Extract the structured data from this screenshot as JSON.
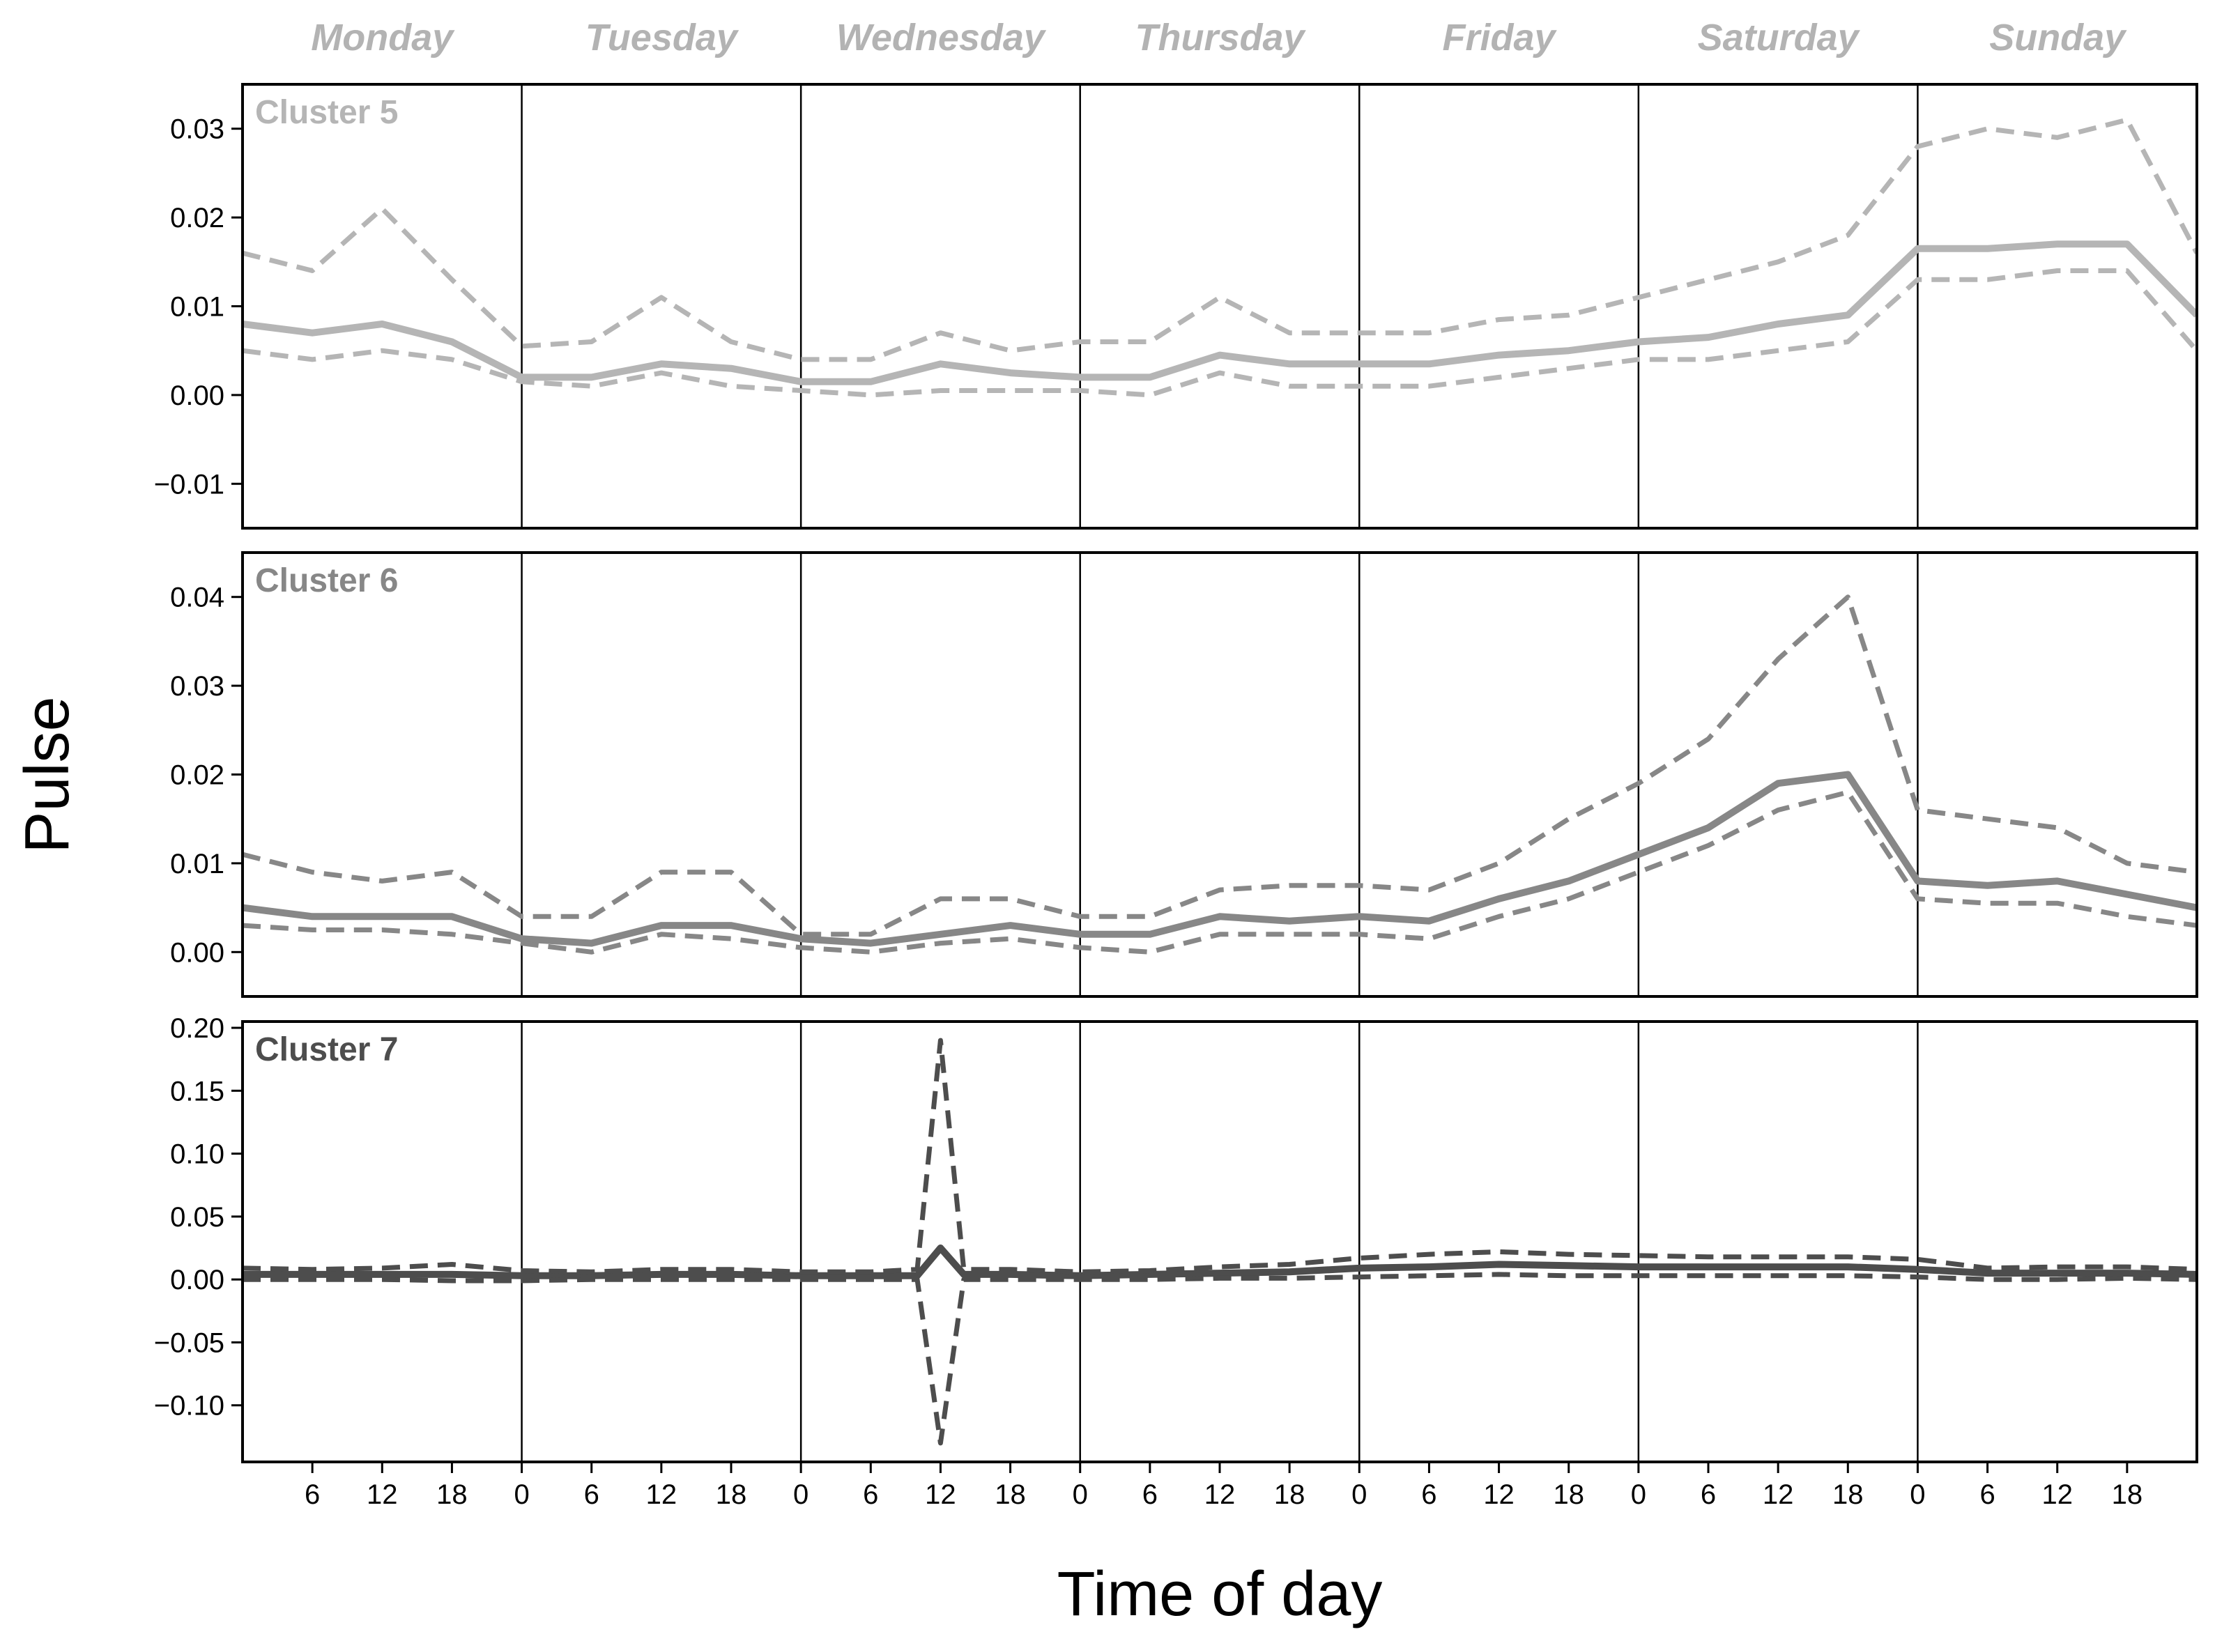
{
  "chart_data": {
    "type": "line",
    "ylabel": "Pulse",
    "xlabel": "Time of day",
    "days": [
      "Monday",
      "Tuesday",
      "Wednesday",
      "Thursday",
      "Friday",
      "Saturday",
      "Sunday"
    ],
    "day_hour_ticks": [
      0,
      6,
      12,
      18
    ],
    "x_unit": "hours since Monday 00:00",
    "xlim": [
      0,
      168
    ],
    "x": [
      0,
      6,
      12,
      18,
      24,
      30,
      36,
      42,
      48,
      54,
      60,
      66,
      72,
      78,
      84,
      90,
      96,
      102,
      108,
      114,
      120,
      126,
      132,
      138,
      144,
      150,
      156,
      162,
      168
    ],
    "panels": [
      {
        "label": "Cluster 5",
        "color": "#b5b5b5",
        "ylim": [
          -0.015,
          0.035
        ],
        "yticks": [
          -0.01,
          0.0,
          0.01,
          0.02,
          0.03
        ],
        "ytick_labels": [
          "−0.01",
          "0.00",
          "0.01",
          "0.02",
          "0.03"
        ],
        "series": [
          {
            "name": "mean",
            "style": "solid",
            "values": [
              0.008,
              0.007,
              0.008,
              0.006,
              0.002,
              0.002,
              0.0035,
              0.003,
              0.0015,
              0.0015,
              0.0035,
              0.0025,
              0.002,
              0.002,
              0.0045,
              0.0035,
              0.0035,
              0.0035,
              0.0045,
              0.005,
              0.006,
              0.0065,
              0.008,
              0.009,
              0.0165,
              0.0165,
              0.017,
              0.017,
              0.009
            ]
          },
          {
            "name": "upper",
            "style": "dashed",
            "values": [
              0.016,
              0.014,
              0.021,
              0.013,
              0.0055,
              0.006,
              0.011,
              0.006,
              0.004,
              0.004,
              0.007,
              0.005,
              0.006,
              0.006,
              0.011,
              0.007,
              0.007,
              0.007,
              0.0085,
              0.009,
              0.011,
              0.013,
              0.015,
              0.018,
              0.028,
              0.03,
              0.029,
              0.031,
              0.016
            ]
          },
          {
            "name": "lower",
            "style": "dashed",
            "values": [
              0.005,
              0.004,
              0.005,
              0.004,
              0.0015,
              0.001,
              0.0025,
              0.001,
              0.0005,
              0.0,
              0.0005,
              0.0005,
              0.0005,
              0.0,
              0.0025,
              0.001,
              0.001,
              0.001,
              0.002,
              0.003,
              0.004,
              0.004,
              0.005,
              0.006,
              0.013,
              0.013,
              0.014,
              0.014,
              0.005
            ]
          }
        ]
      },
      {
        "label": "Cluster 6",
        "color": "#878787",
        "ylim": [
          -0.005,
          0.045
        ],
        "yticks": [
          0.0,
          0.01,
          0.02,
          0.03,
          0.04
        ],
        "ytick_labels": [
          "0.00",
          "0.01",
          "0.02",
          "0.03",
          "0.04"
        ],
        "series": [
          {
            "name": "mean",
            "style": "solid",
            "values": [
              0.005,
              0.004,
              0.004,
              0.004,
              0.0015,
              0.001,
              0.003,
              0.003,
              0.0015,
              0.001,
              0.002,
              0.003,
              0.002,
              0.002,
              0.004,
              0.0035,
              0.004,
              0.0035,
              0.006,
              0.008,
              0.011,
              0.014,
              0.019,
              0.02,
              0.008,
              0.0075,
              0.008,
              0.0065,
              0.005
            ]
          },
          {
            "name": "upper",
            "style": "dashed",
            "values": [
              0.011,
              0.009,
              0.008,
              0.009,
              0.004,
              0.004,
              0.009,
              0.009,
              0.002,
              0.002,
              0.006,
              0.006,
              0.004,
              0.004,
              0.007,
              0.0075,
              0.0075,
              0.007,
              0.01,
              0.015,
              0.019,
              0.024,
              0.033,
              0.04,
              0.016,
              0.015,
              0.014,
              0.01,
              0.009
            ]
          },
          {
            "name": "lower",
            "style": "dashed",
            "values": [
              0.003,
              0.0025,
              0.0025,
              0.002,
              0.001,
              0.0,
              0.002,
              0.0015,
              0.0005,
              0.0,
              0.001,
              0.0015,
              0.0005,
              0.0,
              0.002,
              0.002,
              0.002,
              0.0015,
              0.004,
              0.006,
              0.009,
              0.012,
              0.016,
              0.018,
              0.006,
              0.0055,
              0.0055,
              0.004,
              0.003
            ]
          }
        ]
      },
      {
        "label": "Cluster 7",
        "color": "#4d4d4d",
        "ylim": [
          -0.145,
          0.205
        ],
        "yticks": [
          -0.1,
          -0.05,
          0.0,
          0.05,
          0.1,
          0.15,
          0.2
        ],
        "ytick_labels": [
          "−0.10",
          "−0.05",
          "0.00",
          "0.05",
          "0.10",
          "0.15",
          "0.20"
        ],
        "series": [
          {
            "name": "mean",
            "style": "solid",
            "x": [
              0,
              6,
              12,
              18,
              24,
              30,
              36,
              42,
              48,
              54,
              58,
              60,
              62,
              66,
              72,
              78,
              84,
              90,
              96,
              102,
              108,
              114,
              120,
              126,
              132,
              138,
              144,
              150,
              156,
              162,
              168
            ],
            "values": [
              0.004,
              0.004,
              0.004,
              0.004,
              0.003,
              0.003,
              0.004,
              0.004,
              0.003,
              0.003,
              0.003,
              0.025,
              0.004,
              0.004,
              0.003,
              0.004,
              0.005,
              0.006,
              0.009,
              0.01,
              0.012,
              0.011,
              0.01,
              0.01,
              0.01,
              0.01,
              0.008,
              0.005,
              0.005,
              0.005,
              0.004
            ]
          },
          {
            "name": "upper",
            "style": "dashed",
            "x": [
              0,
              6,
              12,
              18,
              24,
              30,
              36,
              42,
              48,
              54,
              58,
              60,
              62,
              66,
              72,
              78,
              84,
              90,
              96,
              102,
              108,
              114,
              120,
              126,
              132,
              138,
              144,
              150,
              156,
              162,
              168
            ],
            "values": [
              0.009,
              0.008,
              0.009,
              0.012,
              0.007,
              0.006,
              0.008,
              0.008,
              0.006,
              0.006,
              0.008,
              0.19,
              0.008,
              0.008,
              0.006,
              0.007,
              0.01,
              0.012,
              0.017,
              0.02,
              0.022,
              0.02,
              0.019,
              0.018,
              0.018,
              0.018,
              0.016,
              0.009,
              0.01,
              0.01,
              0.008
            ]
          },
          {
            "name": "lower",
            "style": "dashed",
            "x": [
              0,
              6,
              12,
              18,
              24,
              30,
              36,
              42,
              48,
              54,
              58,
              60,
              62,
              66,
              72,
              78,
              84,
              90,
              96,
              102,
              108,
              114,
              120,
              126,
              132,
              138,
              144,
              150,
              156,
              162,
              168
            ],
            "values": [
              0.0,
              0.0,
              0.0,
              -0.001,
              -0.001,
              0.0,
              0.0,
              0.0,
              0.0,
              0.0,
              0.0,
              -0.13,
              0.0,
              0.0,
              0.0,
              0.0,
              0.001,
              0.001,
              0.002,
              0.003,
              0.004,
              0.003,
              0.003,
              0.003,
              0.003,
              0.003,
              0.002,
              0.0,
              0.0,
              0.001,
              0.0
            ]
          }
        ]
      }
    ]
  }
}
